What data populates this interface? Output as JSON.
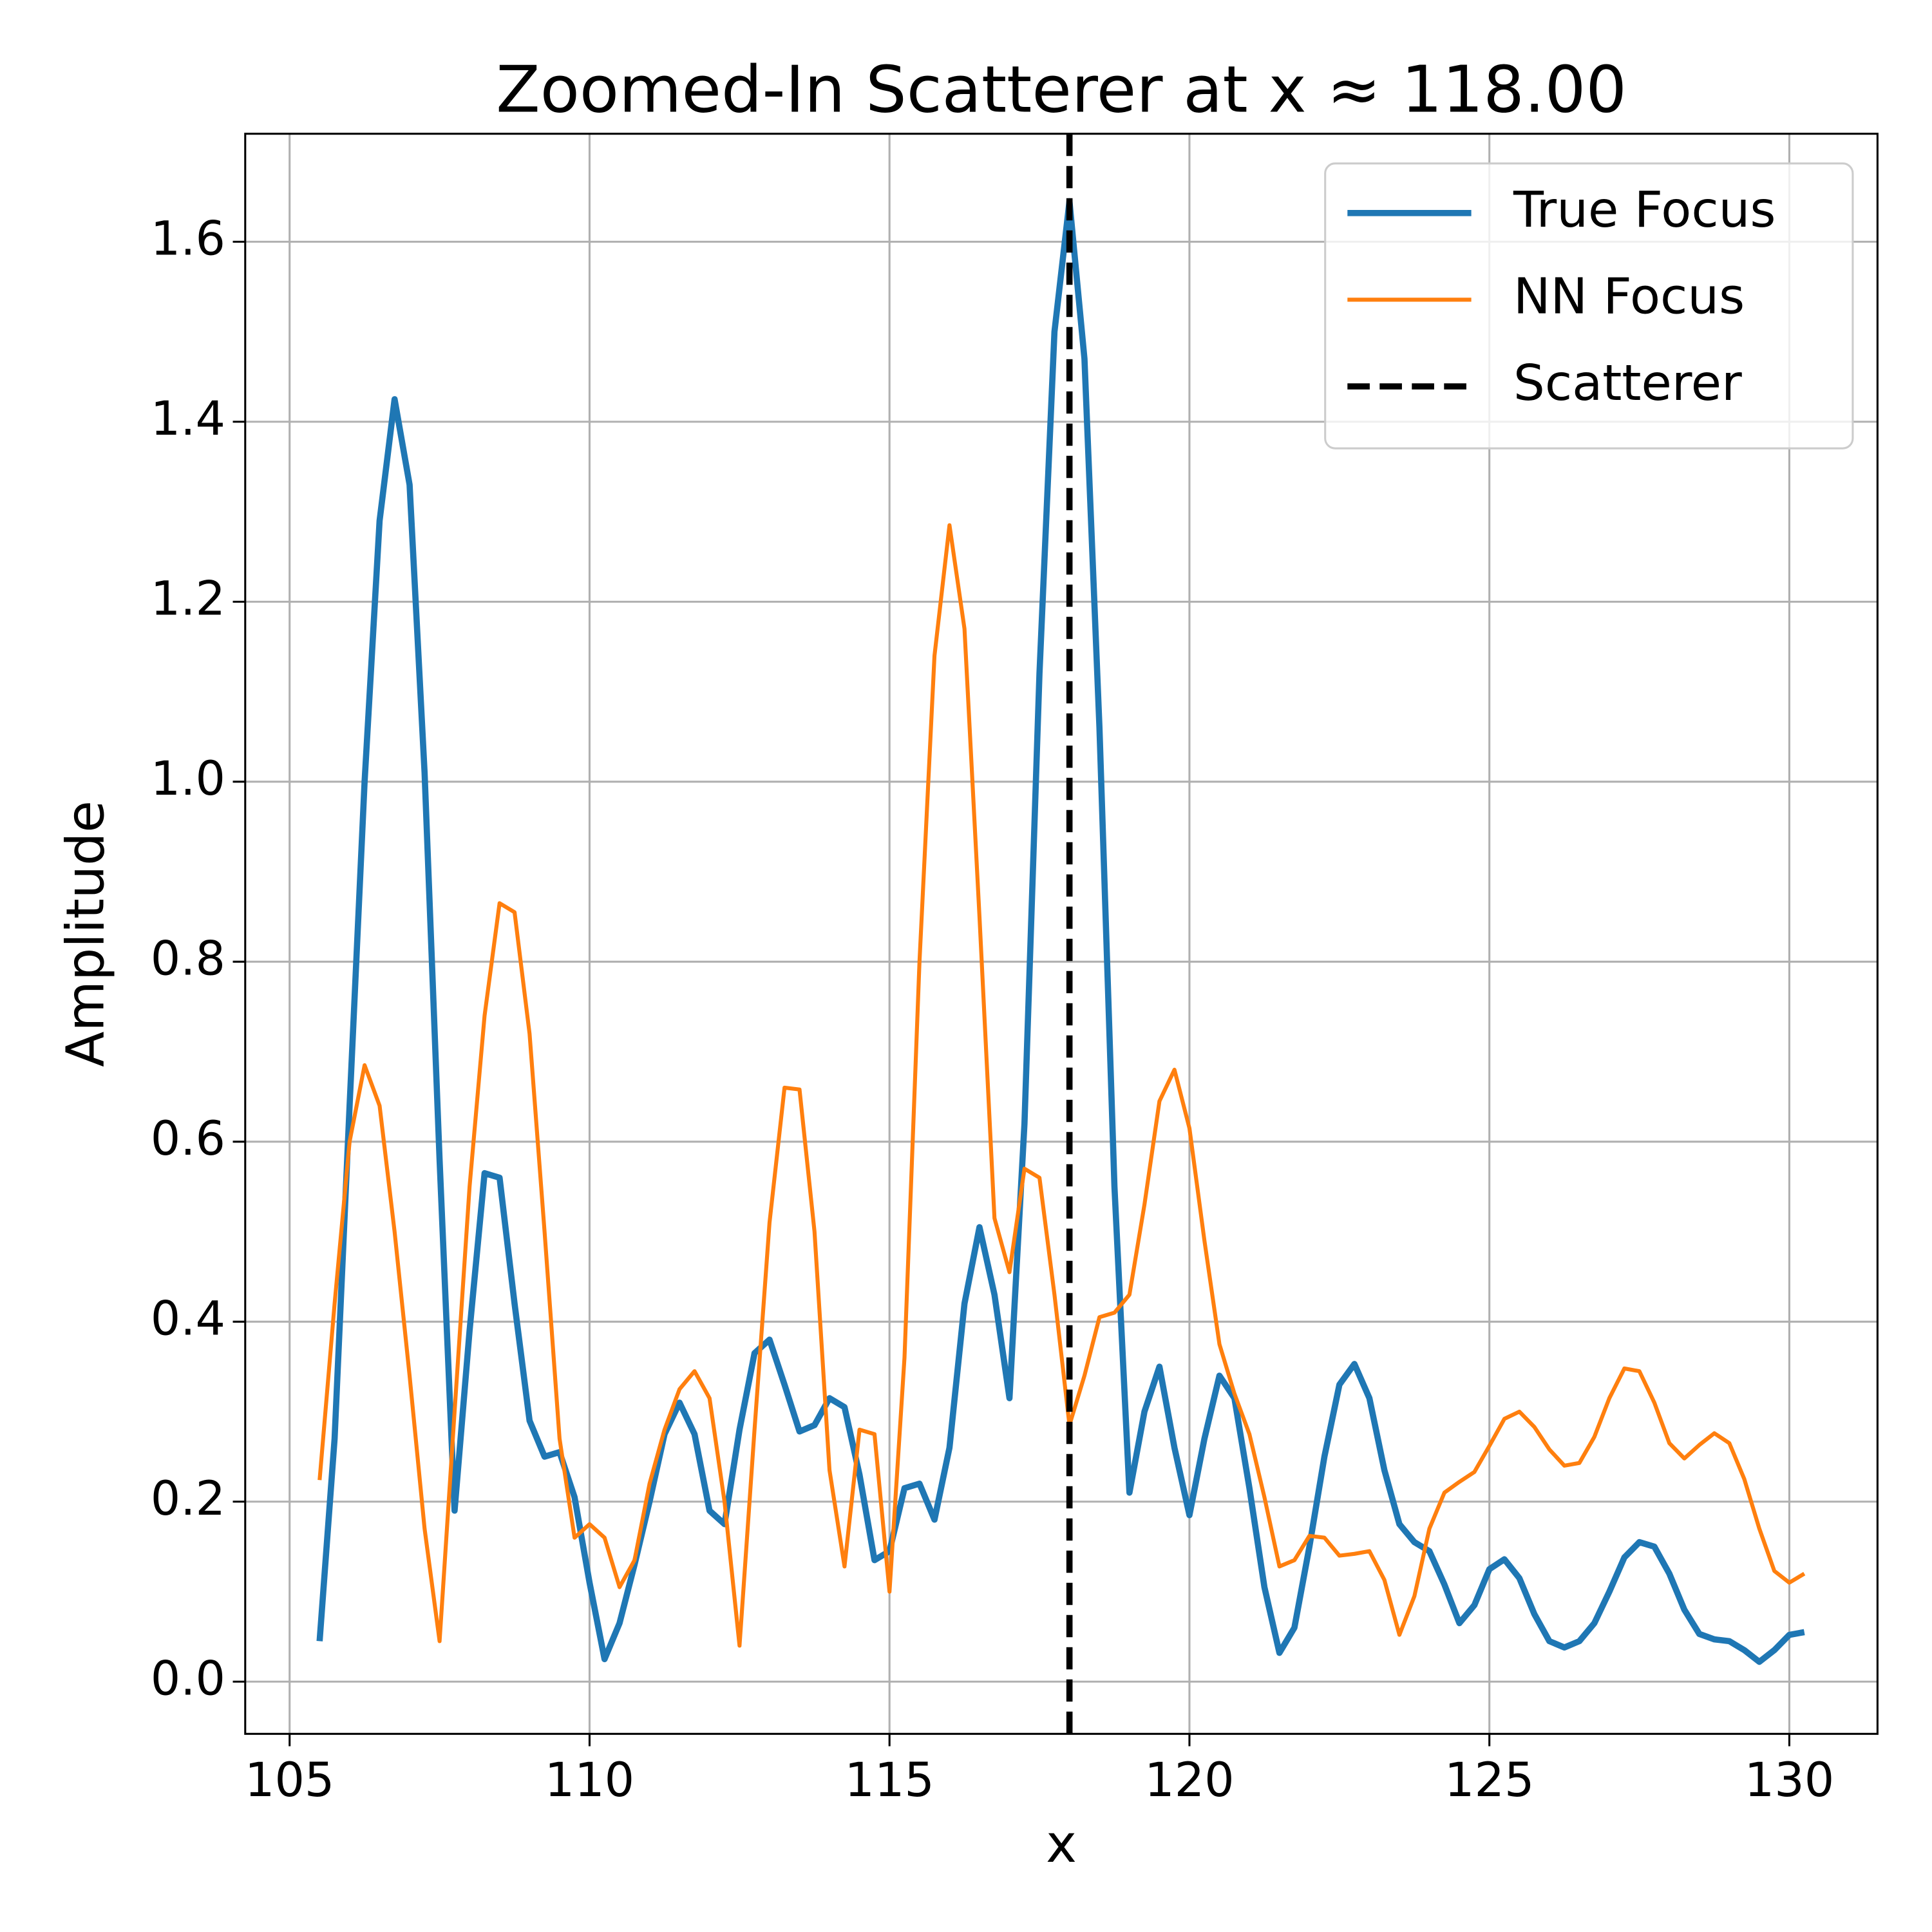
{
  "chart_data": {
    "type": "line",
    "title": "Zoomed-In Scatterer at x ≈ 118.00",
    "xlabel": "x",
    "ylabel": "Amplitude",
    "x": [
      105.5,
      105.75,
      106.0,
      106.25,
      106.5,
      106.75,
      107.0,
      107.25,
      107.5,
      107.75,
      108.0,
      108.25,
      108.5,
      108.75,
      109.0,
      109.25,
      109.5,
      109.75,
      110.0,
      110.25,
      110.5,
      110.75,
      111.0,
      111.25,
      111.5,
      111.75,
      112.0,
      112.25,
      112.5,
      112.75,
      113.0,
      113.25,
      113.5,
      113.75,
      114.0,
      114.25,
      114.5,
      114.75,
      115.0,
      115.25,
      115.5,
      115.75,
      116.0,
      116.25,
      116.5,
      116.75,
      117.0,
      117.25,
      117.5,
      117.75,
      118.0,
      118.25,
      118.5,
      118.75,
      119.0,
      119.25,
      119.5,
      119.75,
      120.0,
      120.25,
      120.5,
      120.75,
      121.0,
      121.25,
      121.5,
      121.75,
      122.0,
      122.25,
      122.5,
      122.75,
      123.0,
      123.25,
      123.5,
      123.75,
      124.0,
      124.25,
      124.5,
      124.75,
      125.0,
      125.25,
      125.5,
      125.75,
      126.0,
      126.25,
      126.5,
      126.75,
      127.0,
      127.25,
      127.5,
      127.75,
      128.0,
      128.25,
      128.5,
      128.75,
      129.0,
      129.25,
      129.5,
      129.75,
      130.0,
      130.25
    ],
    "series": [
      {
        "name": "True Focus",
        "color": "#1f77b4",
        "values": [
          0.045,
          0.27,
          0.64,
          1.0,
          1.29,
          1.425,
          1.33,
          1.01,
          0.58,
          0.19,
          0.39,
          0.565,
          0.56,
          0.42,
          0.29,
          0.25,
          0.255,
          0.205,
          0.11,
          0.025,
          0.065,
          0.13,
          0.2,
          0.275,
          0.31,
          0.275,
          0.19,
          0.175,
          0.28,
          0.365,
          0.38,
          0.33,
          0.278,
          0.285,
          0.315,
          0.305,
          0.23,
          0.135,
          0.145,
          0.215,
          0.22,
          0.18,
          0.26,
          0.42,
          0.505,
          0.43,
          0.315,
          0.62,
          1.12,
          1.5,
          1.645,
          1.47,
          1.06,
          0.55,
          0.21,
          0.3,
          0.35,
          0.26,
          0.185,
          0.27,
          0.34,
          0.315,
          0.215,
          0.105,
          0.032,
          0.06,
          0.15,
          0.25,
          0.33,
          0.353,
          0.315,
          0.235,
          0.175,
          0.155,
          0.145,
          0.108,
          0.065,
          0.085,
          0.125,
          0.136,
          0.115,
          0.075,
          0.045,
          0.038,
          0.045,
          0.065,
          0.1,
          0.138,
          0.155,
          0.15,
          0.12,
          0.08,
          0.053,
          0.047,
          0.045,
          0.035,
          0.022,
          0.035,
          0.052,
          0.055
        ]
      },
      {
        "name": "NN Focus",
        "color": "#ff7f0e",
        "values": [
          0.224,
          0.42,
          0.6,
          0.685,
          0.64,
          0.5,
          0.34,
          0.17,
          0.045,
          0.3,
          0.55,
          0.74,
          0.865,
          0.855,
          0.72,
          0.5,
          0.27,
          0.16,
          0.175,
          0.16,
          0.105,
          0.135,
          0.22,
          0.28,
          0.325,
          0.345,
          0.315,
          0.2,
          0.04,
          0.28,
          0.51,
          0.66,
          0.658,
          0.5,
          0.235,
          0.128,
          0.28,
          0.275,
          0.1,
          0.36,
          0.8,
          1.14,
          1.285,
          1.17,
          0.85,
          0.515,
          0.455,
          0.57,
          0.56,
          0.43,
          0.285,
          0.34,
          0.405,
          0.41,
          0.43,
          0.53,
          0.645,
          0.68,
          0.615,
          0.49,
          0.375,
          0.32,
          0.275,
          0.205,
          0.128,
          0.135,
          0.162,
          0.16,
          0.14,
          0.142,
          0.145,
          0.113,
          0.052,
          0.095,
          0.17,
          0.21,
          0.222,
          0.233,
          0.262,
          0.292,
          0.3,
          0.283,
          0.258,
          0.24,
          0.243,
          0.272,
          0.315,
          0.348,
          0.345,
          0.31,
          0.265,
          0.248,
          0.263,
          0.276,
          0.265,
          0.225,
          0.17,
          0.123,
          0.11,
          0.12
        ]
      }
    ],
    "vlines": [
      {
        "name": "Scatterer",
        "x": 118,
        "color": "#000000",
        "style": "dashed"
      }
    ],
    "xlim": [
      104.26,
      131.47
    ],
    "xticks": [
      105,
      110,
      115,
      120,
      125,
      130
    ],
    "ylim": [
      -0.058,
      1.72
    ],
    "yticks": [
      {
        "value": 0,
        "label": "0.0"
      },
      0.2,
      0.4,
      0.6,
      0.8,
      {
        "value": 1,
        "label": "1.0"
      },
      1.2,
      1.4,
      1.6
    ],
    "grid": true,
    "legend": "upper right"
  }
}
